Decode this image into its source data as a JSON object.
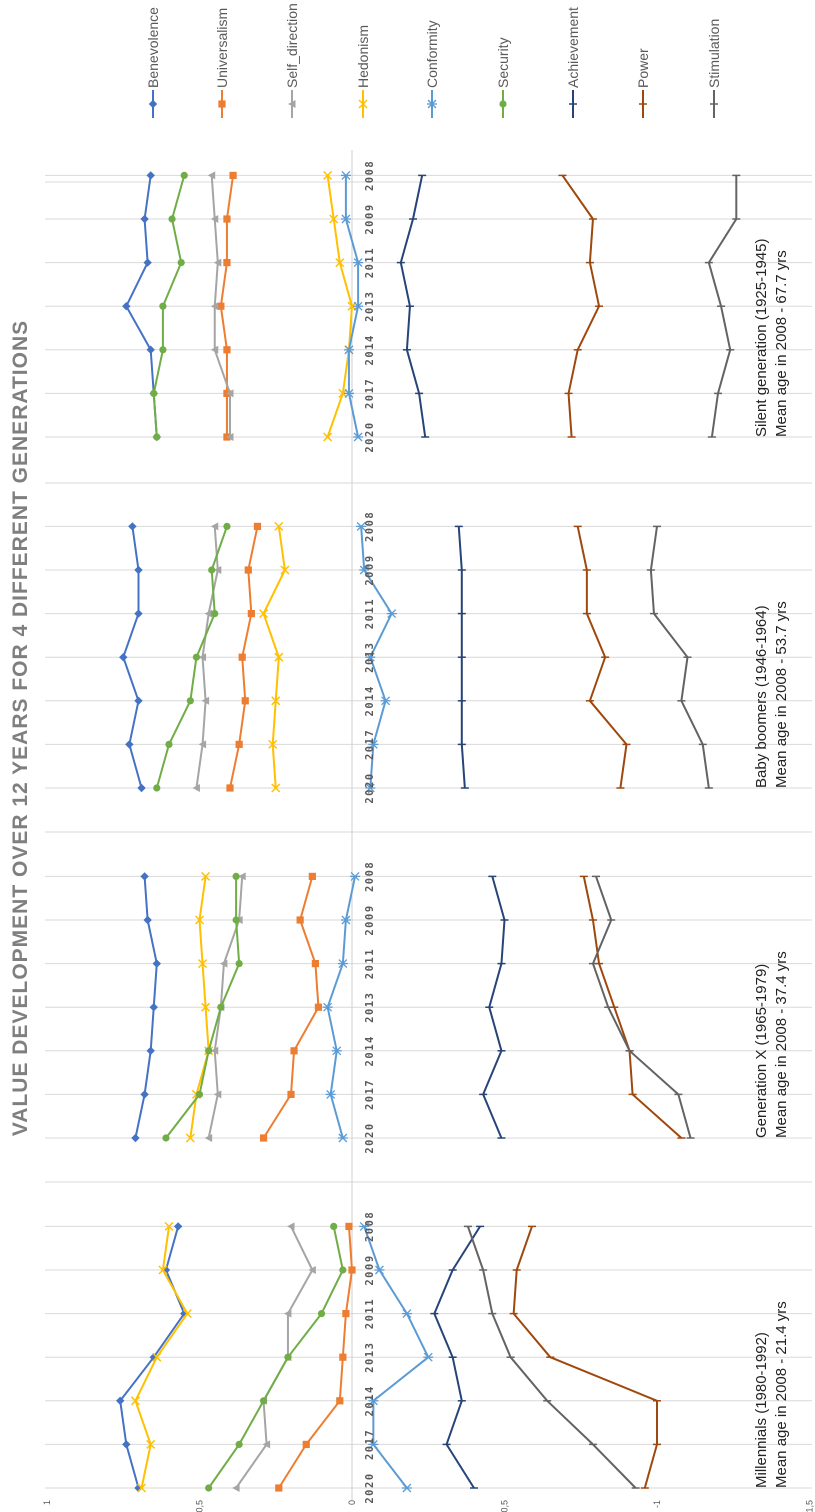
{
  "chart_data": {
    "type": "line",
    "title": "VALUE DEVELOPMENT OVER 12 YEARS FOR 4 DIFFERENT GENERATIONS",
    "orientation": "rotated-90",
    "ylim": [
      -1.5,
      1
    ],
    "yticks": [
      "1",
      "0,5",
      "0",
      "-0,5",
      "-1",
      "-1,5"
    ],
    "x": [
      "2008",
      "2009",
      "2011",
      "2013",
      "2014",
      "2017",
      "2020"
    ],
    "grid": true,
    "legend_position": "top",
    "colors": {
      "Benevolence": "#4472c4",
      "Universalism": "#ed7d31",
      "Self_direction": "#a5a5a5",
      "Hedonism": "#ffc000",
      "Conformity": "#5b9bd5",
      "Security": "#70ad47",
      "Achievement": "#264478",
      "Power": "#9e480e",
      "Stimulation": "#636363"
    },
    "legend": [
      "Benevolence",
      "Universalism",
      "Self_direction",
      "Hedonism",
      "Conformity",
      "Security",
      "Achievement",
      "Power",
      "Stimulation"
    ],
    "panels": [
      {
        "label_line1": "Millennials (1980-1992)",
        "label_line2": "Mean age in 2008 - 21.4 yrs",
        "series": [
          {
            "name": "Benevolence",
            "values": [
              0.57,
              0.61,
              0.55,
              0.65,
              0.76,
              0.74,
              0.7
            ]
          },
          {
            "name": "Universalism",
            "values": [
              0.01,
              0.0,
              0.02,
              0.03,
              0.04,
              0.15,
              0.24
            ]
          },
          {
            "name": "Self_direction",
            "values": [
              0.2,
              0.13,
              0.21,
              0.21,
              0.29,
              0.28,
              0.38
            ]
          },
          {
            "name": "Hedonism",
            "values": [
              0.6,
              0.62,
              0.54,
              0.64,
              0.71,
              0.66,
              0.69
            ]
          },
          {
            "name": "Conformity",
            "values": [
              -0.04,
              -0.09,
              -0.18,
              -0.25,
              -0.07,
              -0.07,
              -0.18
            ]
          },
          {
            "name": "Security",
            "values": [
              0.06,
              0.03,
              0.1,
              0.21,
              0.29,
              0.37,
              0.47
            ]
          },
          {
            "name": "Achievement",
            "values": [
              -0.42,
              -0.33,
              -0.27,
              -0.33,
              -0.36,
              -0.31,
              -0.4
            ]
          },
          {
            "name": "Power",
            "values": [
              -0.59,
              -0.54,
              -0.53,
              -0.65,
              -1.0,
              -1.0,
              -0.96
            ]
          },
          {
            "name": "Stimulation",
            "values": [
              -0.38,
              -0.43,
              -0.46,
              -0.52,
              -0.64,
              -0.79,
              -0.93
            ]
          }
        ]
      },
      {
        "label_line1": "Generation X (1965-1979)",
        "label_line2": "Mean age in 2008 - 37.4 yrs",
        "series": [
          {
            "name": "Benevolence",
            "values": [
              0.68,
              0.67,
              0.64,
              0.65,
              0.66,
              0.68,
              0.71
            ]
          },
          {
            "name": "Universalism",
            "values": [
              0.13,
              0.17,
              0.12,
              0.11,
              0.19,
              0.2,
              0.29
            ]
          },
          {
            "name": "Self_direction",
            "values": [
              0.36,
              0.37,
              0.42,
              0.43,
              0.45,
              0.44,
              0.47
            ]
          },
          {
            "name": "Hedonism",
            "values": [
              0.48,
              0.5,
              0.49,
              0.48,
              0.47,
              0.51,
              0.53
            ]
          },
          {
            "name": "Conformity",
            "values": [
              -0.01,
              0.02,
              0.03,
              0.08,
              0.05,
              0.07,
              0.03
            ]
          },
          {
            "name": "Security",
            "values": [
              0.38,
              0.38,
              0.37,
              0.43,
              0.47,
              0.5,
              0.61
            ]
          },
          {
            "name": "Achievement",
            "values": [
              -0.46,
              -0.5,
              -0.49,
              -0.45,
              -0.49,
              -0.43,
              -0.49
            ]
          },
          {
            "name": "Power",
            "values": [
              -0.76,
              -0.79,
              -0.81,
              -0.86,
              -0.91,
              -0.92,
              -1.08
            ]
          },
          {
            "name": "Stimulation",
            "values": [
              -0.8,
              -0.85,
              -0.79,
              -0.84,
              -0.91,
              -1.07,
              -1.11
            ]
          }
        ]
      },
      {
        "label_line1": "Baby boomers (1946-1964)",
        "label_line2": "Mean age in 2008 - 53.7 yrs",
        "series": [
          {
            "name": "Benevolence",
            "values": [
              0.72,
              0.7,
              0.7,
              0.75,
              0.7,
              0.73,
              0.69
            ]
          },
          {
            "name": "Universalism",
            "values": [
              0.31,
              0.34,
              0.33,
              0.36,
              0.35,
              0.37,
              0.4
            ]
          },
          {
            "name": "Self_direction",
            "values": [
              0.45,
              0.44,
              0.47,
              0.49,
              0.48,
              0.49,
              0.51
            ]
          },
          {
            "name": "Hedonism",
            "values": [
              0.24,
              0.22,
              0.29,
              0.24,
              0.25,
              0.26,
              0.25
            ]
          },
          {
            "name": "Conformity",
            "values": [
              -0.03,
              -0.04,
              -0.13,
              -0.06,
              -0.11,
              -0.07,
              -0.06
            ]
          },
          {
            "name": "Security",
            "values": [
              0.41,
              0.46,
              0.45,
              0.51,
              0.53,
              0.6,
              0.64
            ]
          },
          {
            "name": "Achievement",
            "values": [
              -0.35,
              -0.36,
              -0.36,
              -0.36,
              -0.36,
              -0.36,
              -0.37
            ]
          },
          {
            "name": "Power",
            "values": [
              -0.74,
              -0.77,
              -0.77,
              -0.83,
              -0.78,
              -0.9,
              -0.88
            ]
          },
          {
            "name": "Stimulation",
            "values": [
              -1.0,
              -0.98,
              -0.99,
              -1.1,
              -1.08,
              -1.15,
              -1.17
            ]
          }
        ]
      },
      {
        "label_line1": "Silent generation (1925-1945)",
        "label_line2": "Mean age in 2008 - 67.7 yrs",
        "series": [
          {
            "name": "Benevolence",
            "values": [
              0.66,
              0.68,
              0.67,
              0.74,
              0.66,
              0.65,
              0.64
            ]
          },
          {
            "name": "Universalism",
            "values": [
              0.39,
              0.41,
              0.41,
              0.43,
              0.41,
              0.41,
              0.41
            ]
          },
          {
            "name": "Self_direction",
            "values": [
              0.46,
              0.45,
              0.44,
              0.45,
              0.45,
              0.4,
              0.4
            ]
          },
          {
            "name": "Hedonism",
            "values": [
              0.08,
              0.06,
              0.04,
              0.0,
              0.01,
              0.03,
              0.08
            ]
          },
          {
            "name": "Conformity",
            "values": [
              0.02,
              0.02,
              -0.02,
              -0.02,
              0.01,
              0.01,
              -0.02
            ]
          },
          {
            "name": "Security",
            "values": [
              0.55,
              0.59,
              0.56,
              0.62,
              0.62,
              0.65,
              0.64
            ]
          },
          {
            "name": "Achievement",
            "values": [
              -0.23,
              -0.2,
              -0.16,
              -0.19,
              -0.18,
              -0.22,
              -0.24
            ]
          },
          {
            "name": "Power",
            "values": [
              -0.69,
              -0.79,
              -0.78,
              -0.81,
              -0.74,
              -0.71,
              -0.72
            ]
          },
          {
            "name": "Stimulation",
            "values": [
              -1.26,
              -1.26,
              -1.17,
              -1.21,
              -1.24,
              -1.2,
              -1.18
            ]
          }
        ]
      }
    ]
  }
}
